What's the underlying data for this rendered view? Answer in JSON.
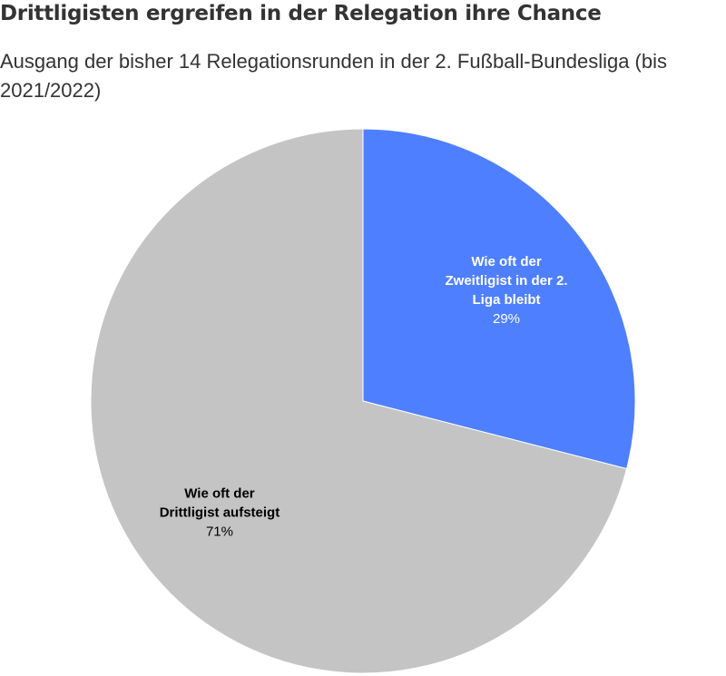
{
  "chart_data": {
    "type": "pie",
    "title": "Drittligisten ergreifen in der Relegation ihre Chance",
    "subtitle": "Ausgang der bisher 14 Relegationsrunden in der 2. Fußball-Bundesliga (bis 2021/2022)",
    "series": [
      {
        "name_lines": [
          "Wie oft der",
          "Zweitligist in der 2.",
          "Liga bleibt"
        ],
        "value_label": "29%",
        "value": 29,
        "color": "#4e7fff",
        "text_color": "#ffffff"
      },
      {
        "name_lines": [
          "Wie oft der",
          "Drittligist aufsteigt"
        ],
        "value_label": "71%",
        "value": 71,
        "color": "#c4c4c4",
        "text_color": "#000000"
      }
    ]
  }
}
